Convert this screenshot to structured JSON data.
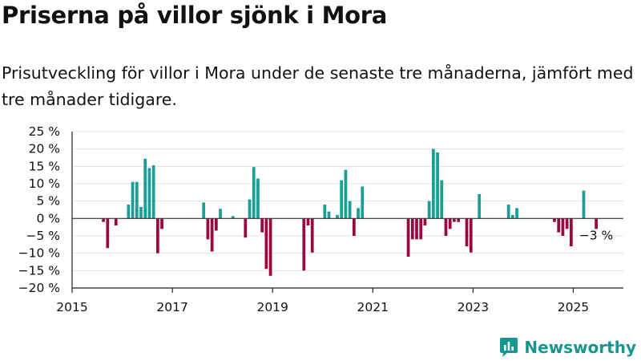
{
  "header": {
    "title": "Priserna på villor sjönk i Mora",
    "subtitle": "Prisutveckling för villor i Mora under de senaste tre månaderna, jämfört med tre månader tidigare."
  },
  "brand": {
    "name": "Newsworthy",
    "icon": "newsworthy-logo-icon"
  },
  "colors": {
    "positive": "#1a9e96",
    "negative": "#99093f",
    "grid": "#e3e3e3",
    "axis": "#222222",
    "brand": "#16968f"
  },
  "chart_data": {
    "type": "bar",
    "title": "",
    "xlabel": "",
    "ylabel": "",
    "ylim": [
      -20,
      25
    ],
    "xlim": [
      "2015-01",
      "2026-01"
    ],
    "y_ticks": [
      25,
      20,
      15,
      10,
      5,
      0,
      -5,
      -10,
      -15,
      -20
    ],
    "y_tick_labels": [
      "25 %",
      "20 %",
      "15 %",
      "10 %",
      "5 %",
      "0 %",
      "−5 %",
      "−10 %",
      "−15 %",
      "−20 %"
    ],
    "x_ticks": [
      "2015-01",
      "2017-01",
      "2019-01",
      "2021-01",
      "2023-01",
      "2025-01"
    ],
    "x_tick_labels": [
      "2015",
      "2017",
      "2019",
      "2021",
      "2023",
      "2025"
    ],
    "grid": true,
    "annotation": {
      "x": "2025-06",
      "y": -3,
      "text": "−3 %"
    },
    "series": [
      {
        "x": [
          "2015-08",
          "2015-09",
          "2015-11",
          "2016-02",
          "2016-03",
          "2016-04",
          "2016-05",
          "2016-06",
          "2016-07",
          "2016-08",
          "2016-09",
          "2016-10",
          "2017-08",
          "2017-09",
          "2017-10",
          "2017-11",
          "2017-12",
          "2018-03",
          "2018-06",
          "2018-07",
          "2018-08",
          "2018-09",
          "2018-10",
          "2018-11",
          "2018-12",
          "2019-08",
          "2019-09",
          "2019-10",
          "2020-01",
          "2020-02",
          "2020-04",
          "2020-05",
          "2020-06",
          "2020-07",
          "2020-08",
          "2020-09",
          "2020-10",
          "2021-09",
          "2021-10",
          "2021-11",
          "2021-12",
          "2022-01",
          "2022-02",
          "2022-03",
          "2022-04",
          "2022-05",
          "2022-06",
          "2022-07",
          "2022-08",
          "2022-09",
          "2022-11",
          "2022-12",
          "2023-02",
          "2023-09",
          "2023-10",
          "2023-11",
          "2024-08",
          "2024-09",
          "2024-10",
          "2024-11",
          "2024-12",
          "2025-03",
          "2025-06"
        ],
        "values": [
          -1,
          -8.5,
          -2,
          4,
          10.5,
          10.5,
          3.3,
          17.2,
          14.5,
          15.3,
          -10,
          -3,
          4.6,
          -6,
          -9.5,
          -3.5,
          2.8,
          0.7,
          -5.5,
          5.5,
          14.8,
          11.5,
          -4,
          -14.5,
          -16.5,
          -15,
          -2,
          -9.8,
          4,
          2,
          1,
          11,
          14,
          5,
          -5,
          3,
          9.2,
          -11,
          -6,
          -6,
          -6,
          -2,
          5,
          20,
          19,
          11,
          -5,
          -3,
          -1,
          -1,
          -8,
          -9.8,
          7,
          4,
          1,
          3,
          -1,
          -4,
          -5,
          -3,
          -8,
          8,
          -3
        ]
      }
    ]
  }
}
